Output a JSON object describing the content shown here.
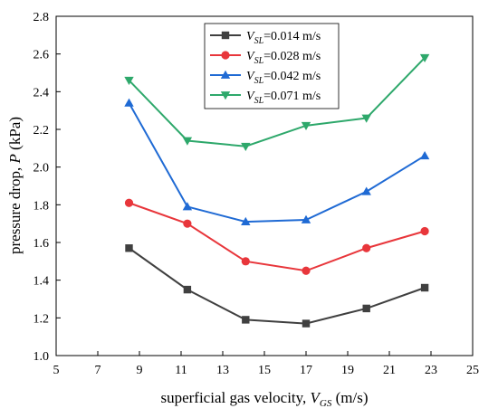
{
  "chart_data": {
    "type": "line",
    "x": [
      8.5,
      11.3,
      14.1,
      17.0,
      19.9,
      22.7
    ],
    "xlim": [
      5,
      25
    ],
    "ylim": [
      1.0,
      2.8
    ],
    "xticks": [
      "5",
      "7",
      "9",
      "11",
      "13",
      "15",
      "17",
      "19",
      "21",
      "23",
      "25"
    ],
    "yticks": [
      "1.0",
      "1.2",
      "1.4",
      "1.6",
      "1.8",
      "2.0",
      "2.2",
      "2.4",
      "2.6",
      "2.8"
    ],
    "xlabel": {
      "prefix": "superficial gas velocity, ",
      "var": "V",
      "sub": "GS",
      "suffix": " (m/s)"
    },
    "ylabel": {
      "prefix": "pressure drop, ",
      "var": "P",
      "suffix": " (kPa)"
    },
    "grid": false,
    "legend_position": "top-center",
    "series": [
      {
        "name": {
          "var": "V",
          "sub": "SL",
          "rest": "=0.014 m/s"
        },
        "color": "#404040",
        "marker": "square",
        "values": [
          1.57,
          1.35,
          1.19,
          1.17,
          1.25,
          1.36
        ]
      },
      {
        "name": {
          "var": "V",
          "sub": "SL",
          "rest": "=0.028 m/s"
        },
        "color": "#e8363b",
        "marker": "circle",
        "values": [
          1.81,
          1.7,
          1.5,
          1.45,
          1.57,
          1.66
        ]
      },
      {
        "name": {
          "var": "V",
          "sub": "SL",
          "rest": "=0.042 m/s"
        },
        "color": "#1f6ad4",
        "marker": "triangle-up",
        "values": [
          2.34,
          1.79,
          1.71,
          1.72,
          1.87,
          2.06
        ]
      },
      {
        "name": {
          "var": "V",
          "sub": "SL",
          "rest": "=0.071 m/s"
        },
        "color": "#2ea86b",
        "marker": "triangle-down",
        "values": [
          2.46,
          2.14,
          2.11,
          2.22,
          2.26,
          2.58
        ]
      }
    ]
  }
}
